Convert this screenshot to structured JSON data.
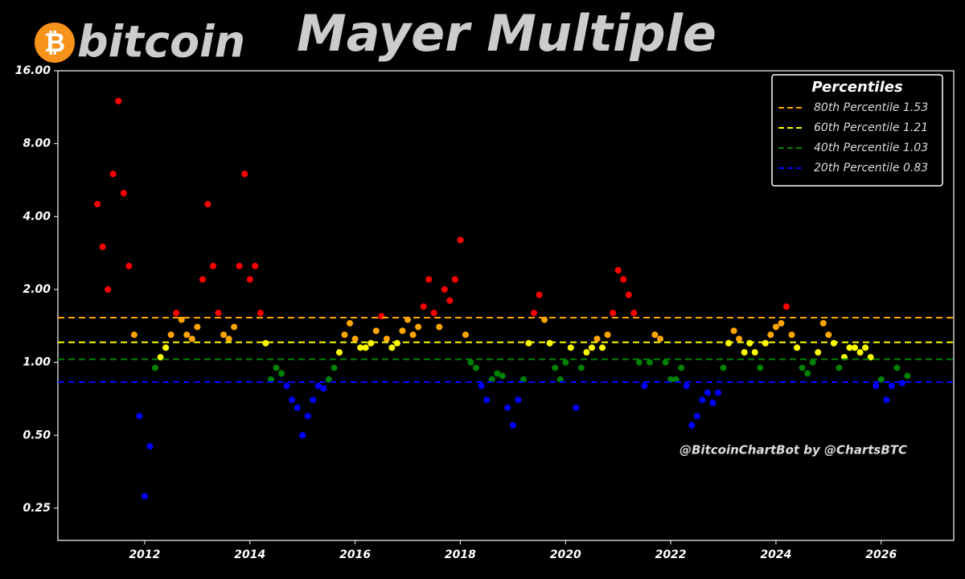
{
  "chart_data": {
    "type": "scatter",
    "title": "Mayer Multiple",
    "brand": "bitcoin",
    "brand_symbol": "₿",
    "watermark": "@BitcoinChartBot by @ChartsBTC",
    "legend_title": "Percentiles",
    "legend_position": "upper right",
    "log_scale_y": true,
    "xlim": [
      2010.35,
      2027.38
    ],
    "xticks": [
      2012,
      2014,
      2016,
      2018,
      2020,
      2022,
      2024,
      2026
    ],
    "ylim": [
      0.184,
      16
    ],
    "yticks": [
      {
        "value": 0.25,
        "label": "0.25"
      },
      {
        "value": 0.5,
        "label": "0.50"
      },
      {
        "value": 1,
        "label": "1.00"
      },
      {
        "value": 2,
        "label": "2.00"
      },
      {
        "value": 4,
        "label": "4.00"
      },
      {
        "value": 8,
        "label": "8.00"
      },
      {
        "value": 16,
        "label": "16.00"
      }
    ],
    "percentiles": [
      {
        "name": "80th Percentile 1.53",
        "value": 1.53,
        "color": "#ffa500"
      },
      {
        "name": "60th Percentile 1.21",
        "value": 1.21,
        "color": "#ffff00"
      },
      {
        "name": "40th Percentile 1.03",
        "value": 1.03,
        "color": "#008000"
      },
      {
        "name": "20th Percentile 0.83",
        "value": 0.83,
        "color": "#0000ff"
      }
    ],
    "point_colors": [
      "#ff0000",
      "#ffa500",
      "#ffff00",
      "#008000",
      "#0000ff"
    ],
    "x": [
      2011.1,
      2011.2,
      2011.3,
      2011.4,
      2011.5,
      2011.6,
      2011.7,
      2011.8,
      2011.9,
      2012.0,
      2012.1,
      2012.2,
      2012.3,
      2012.4,
      2012.5,
      2012.6,
      2012.7,
      2012.8,
      2012.9,
      2013.0,
      2013.1,
      2013.2,
      2013.3,
      2013.4,
      2013.5,
      2013.6,
      2013.7,
      2013.8,
      2013.9,
      2014.0,
      2014.1,
      2014.2,
      2014.3,
      2014.4,
      2014.5,
      2014.6,
      2014.7,
      2014.8,
      2014.9,
      2015.0,
      2015.1,
      2015.2,
      2015.3,
      2015.4,
      2015.5,
      2015.6,
      2015.7,
      2015.8,
      2015.9,
      2016.0,
      2016.1,
      2016.2,
      2016.3,
      2016.4,
      2016.5,
      2016.6,
      2016.7,
      2016.8,
      2016.9,
      2017.0,
      2017.1,
      2017.2,
      2017.3,
      2017.4,
      2017.5,
      2017.6,
      2017.7,
      2017.8,
      2017.9,
      2018.0,
      2018.1,
      2018.2,
      2018.3,
      2018.4,
      2018.5,
      2018.6,
      2018.7,
      2018.8,
      2018.9,
      2019.0,
      2019.1,
      2019.2,
      2019.3,
      2019.4,
      2019.5,
      2019.6,
      2019.7,
      2019.8,
      2019.9,
      2020.0,
      2020.1,
      2020.2,
      2020.3,
      2020.4,
      2020.5,
      2020.6,
      2020.7,
      2020.8,
      2020.9,
      2021.0,
      2021.1,
      2021.2,
      2021.3,
      2021.4,
      2021.5,
      2021.6,
      2021.7,
      2021.8,
      2021.9,
      2022.0,
      2022.1,
      2022.2,
      2022.3,
      2022.4,
      2022.5,
      2022.6,
      2022.7,
      2022.8,
      2022.9,
      2023.0,
      2023.1,
      2023.2,
      2023.3,
      2023.4,
      2023.5,
      2023.6,
      2023.7,
      2023.8,
      2023.9,
      2024.0,
      2024.1,
      2024.2,
      2024.3,
      2024.4,
      2024.5,
      2024.6,
      2024.7,
      2024.8,
      2024.9,
      2025.0,
      2025.1,
      2025.2,
      2025.3,
      2025.4,
      2025.5,
      2025.6,
      2025.7,
      2025.8,
      2025.9,
      2026.0,
      2026.1,
      2026.2,
      2026.3,
      2026.4,
      2026.5
    ],
    "values": [
      4.5,
      3.0,
      2.0,
      6,
      12,
      5,
      2.5,
      1.3,
      0.6,
      0.28,
      0.45,
      0.95,
      1.05,
      1.15,
      1.3,
      1.6,
      1.5,
      1.3,
      1.25,
      1.4,
      2.2,
      4.5,
      2.5,
      1.6,
      1.3,
      1.25,
      1.4,
      2.5,
      6.0,
      2.2,
      2.5,
      1.6,
      1.2,
      0.85,
      0.95,
      0.9,
      0.8,
      0.7,
      0.65,
      0.5,
      0.6,
      0.7,
      0.8,
      0.78,
      0.85,
      0.95,
      1.1,
      1.3,
      1.45,
      1.25,
      1.15,
      1.15,
      1.2,
      1.35,
      1.55,
      1.25,
      1.15,
      1.2,
      1.35,
      1.5,
      1.3,
      1.4,
      1.7,
      2.2,
      1.6,
      1.4,
      2.0,
      1.8,
      2.2,
      3.2,
      1.3,
      1.0,
      0.95,
      0.8,
      0.7,
      0.85,
      0.9,
      0.88,
      0.65,
      0.55,
      0.7,
      0.85,
      1.2,
      1.6,
      1.9,
      1.5,
      1.2,
      0.95,
      0.85,
      1.0,
      1.15,
      0.65,
      0.95,
      1.1,
      1.15,
      1.25,
      1.15,
      1.3,
      1.6,
      2.4,
      2.2,
      1.9,
      1.6,
      1.0,
      0.8,
      1.0,
      1.3,
      1.25,
      1.0,
      0.85,
      0.85,
      0.95,
      0.8,
      0.55,
      0.6,
      0.7,
      0.75,
      0.68,
      0.75,
      0.95,
      1.2,
      1.35,
      1.25,
      1.1,
      1.2,
      1.1,
      0.95,
      1.2,
      1.3,
      1.4,
      1.45,
      1.7,
      1.3,
      1.15,
      0.95,
      0.9,
      1.0,
      1.1,
      1.45,
      1.3,
      1.2,
      0.95,
      1.05,
      1.15,
      1.15,
      1.1,
      1.15,
      1.05,
      0.8,
      0.85,
      0.7,
      0.8,
      0.95,
      0.82,
      0.88
    ]
  }
}
